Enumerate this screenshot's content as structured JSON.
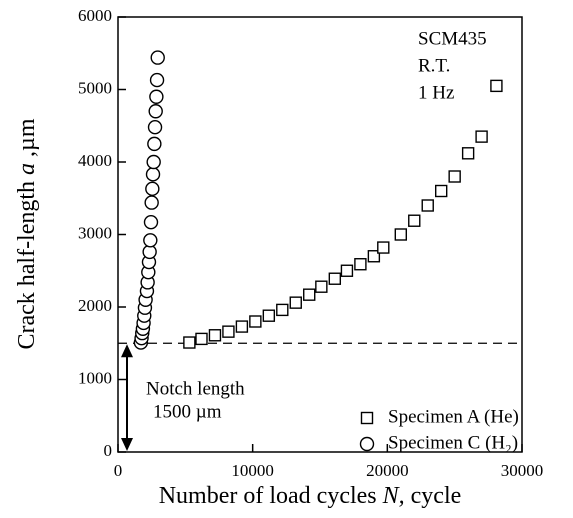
{
  "chart_data": {
    "type": "scatter",
    "xlabel": [
      "Number of load cycles ",
      "N,",
      " cycle"
    ],
    "ylabel": [
      "Crack half-length ",
      "a",
      " ,µm"
    ],
    "annotations": [
      "SCM435",
      "R.T.",
      "1 Hz"
    ],
    "notch_label": [
      "Notch length",
      "1500 µm"
    ],
    "hline": 1500,
    "xlim": [
      0,
      30000
    ],
    "xticks": [
      0,
      10000,
      20000,
      30000
    ],
    "ylim": [
      0,
      6000
    ],
    "yticks": [
      0,
      1000,
      2000,
      3000,
      4000,
      5000,
      6000
    ],
    "legend": "lower right",
    "series": [
      {
        "name": "Specimen A (He)",
        "marker": "square",
        "color": "#000000",
        "x": [
          5300,
          6200,
          7200,
          8200,
          9200,
          10200,
          11200,
          12200,
          13200,
          14200,
          15100,
          16100,
          17000,
          18000,
          19000,
          19700,
          21000,
          22000,
          23000,
          24000,
          25000,
          26000,
          27000,
          28100
        ],
        "values": [
          1510,
          1560,
          1610,
          1660,
          1730,
          1800,
          1880,
          1960,
          2060,
          2170,
          2280,
          2390,
          2500,
          2590,
          2700,
          2820,
          3000,
          3190,
          3400,
          3600,
          3800,
          4120,
          4350,
          5050
        ]
      },
      {
        "name": "Specimen C (H₂)",
        "marker": "circle",
        "color": "#000000",
        "x": [
          1700,
          1750,
          1800,
          1850,
          1900,
          1950,
          2000,
          2050,
          2150,
          2200,
          2250,
          2300,
          2350,
          2400,
          2450,
          2500,
          2550,
          2600,
          2650,
          2700,
          2750,
          2800,
          2850,
          2900,
          2950
        ],
        "values": [
          1510,
          1570,
          1640,
          1700,
          1780,
          1880,
          1990,
          2100,
          2220,
          2340,
          2480,
          2620,
          2760,
          2920,
          3170,
          3440,
          3630,
          3830,
          4000,
          4250,
          4480,
          4700,
          4900,
          5130,
          5440
        ]
      }
    ]
  }
}
